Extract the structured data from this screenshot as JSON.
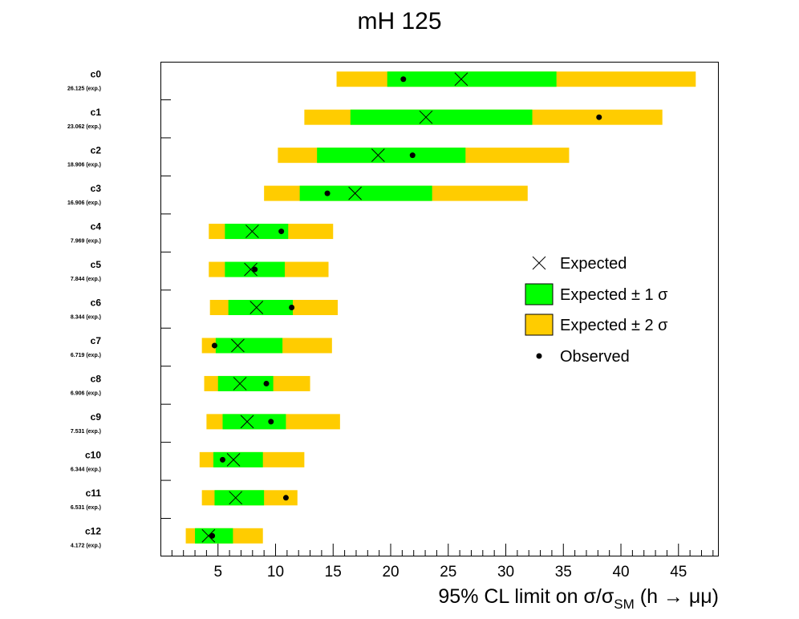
{
  "chart_data": {
    "type": "limit-bands",
    "title": "mH 125",
    "xlabel": {
      "prefix": "95% CL limit on σ/σ",
      "sub": "SM",
      "suffix": " (h → μμ)"
    },
    "xlim": [
      0,
      48.5
    ],
    "x_major_ticks": [
      5,
      10,
      15,
      20,
      25,
      30,
      35,
      40,
      45
    ],
    "x_minor_step": 1,
    "colors": {
      "one_sigma": "#00ff00",
      "two_sigma": "#ffcc00",
      "marker": "#000000",
      "frame": "#000000"
    },
    "legend": {
      "placement": "right",
      "entries": [
        {
          "key": "expected",
          "label": "Expected"
        },
        {
          "key": "one_sigma",
          "label": "Expected ± 1 σ"
        },
        {
          "key": "two_sigma",
          "label": "Expected ± 2 σ"
        },
        {
          "key": "observed",
          "label": "Observed"
        }
      ]
    },
    "categories": [
      {
        "name": "c0",
        "sub": "26.125 (exp.)",
        "expected": 26.125,
        "observed": 21.1,
        "one_sigma": [
          19.7,
          34.4
        ],
        "two_sigma": [
          15.3,
          46.5
        ]
      },
      {
        "name": "c1",
        "sub": "23.062 (exp.)",
        "expected": 23.062,
        "observed": 38.1,
        "one_sigma": [
          16.5,
          32.3
        ],
        "two_sigma": [
          12.5,
          43.6
        ]
      },
      {
        "name": "c2",
        "sub": "18.906 (exp.)",
        "expected": 18.906,
        "observed": 21.9,
        "one_sigma": [
          13.6,
          26.5
        ],
        "two_sigma": [
          10.2,
          35.5
        ]
      },
      {
        "name": "c3",
        "sub": "16.906 (exp.)",
        "expected": 16.906,
        "observed": 14.5,
        "one_sigma": [
          12.1,
          23.6
        ],
        "two_sigma": [
          9.0,
          31.9
        ]
      },
      {
        "name": "c4",
        "sub": "7.969 (exp.)",
        "expected": 7.969,
        "observed": 10.5,
        "one_sigma": [
          5.6,
          11.1
        ],
        "two_sigma": [
          4.2,
          15.0
        ]
      },
      {
        "name": "c5",
        "sub": "7.844 (exp.)",
        "expected": 7.844,
        "observed": 8.2,
        "one_sigma": [
          5.6,
          10.8
        ],
        "two_sigma": [
          4.2,
          14.6
        ]
      },
      {
        "name": "c6",
        "sub": "8.344 (exp.)",
        "expected": 8.344,
        "observed": 11.4,
        "one_sigma": [
          5.9,
          11.5
        ],
        "two_sigma": [
          4.3,
          15.4
        ]
      },
      {
        "name": "c7",
        "sub": "6.719 (exp.)",
        "expected": 6.719,
        "observed": 4.7,
        "one_sigma": [
          4.8,
          10.6
        ],
        "two_sigma": [
          3.6,
          14.9
        ]
      },
      {
        "name": "c8",
        "sub": "6.906 (exp.)",
        "expected": 6.906,
        "observed": 9.2,
        "one_sigma": [
          5.0,
          9.8
        ],
        "two_sigma": [
          3.8,
          13.0
        ]
      },
      {
        "name": "c9",
        "sub": "7.531 (exp.)",
        "expected": 7.531,
        "observed": 9.6,
        "one_sigma": [
          5.4,
          10.9
        ],
        "two_sigma": [
          4.0,
          15.6
        ]
      },
      {
        "name": "c10",
        "sub": "6.344 (exp.)",
        "expected": 6.344,
        "observed": 5.4,
        "one_sigma": [
          4.6,
          8.9
        ],
        "two_sigma": [
          3.4,
          12.5
        ]
      },
      {
        "name": "c11",
        "sub": "6.531 (exp.)",
        "expected": 6.531,
        "observed": 10.9,
        "one_sigma": [
          4.7,
          9.0
        ],
        "two_sigma": [
          3.6,
          11.9
        ]
      },
      {
        "name": "c12",
        "sub": "4.172 (exp.)",
        "expected": 4.172,
        "observed": 4.5,
        "one_sigma": [
          3.0,
          6.3
        ],
        "two_sigma": [
          2.2,
          8.9
        ]
      }
    ]
  }
}
